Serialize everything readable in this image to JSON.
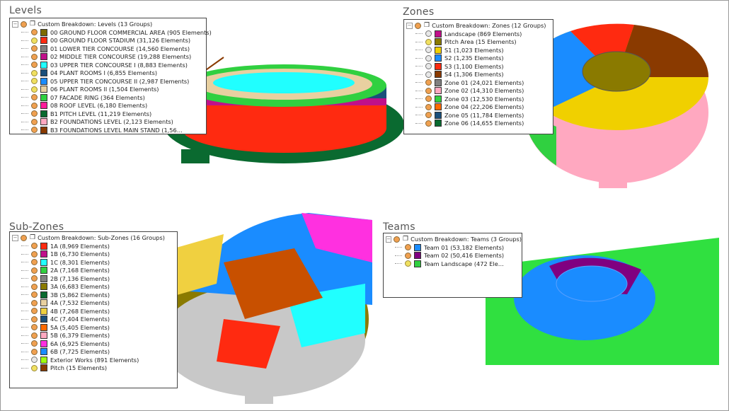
{
  "panels": [
    {
      "title": "Levels",
      "root": "Custom Breakdown: Levels (13 Groups)",
      "items": [
        {
          "label": "00 GROUND FLOOR COMMERCIAL AREA (905 Elements)",
          "color": "#7d6b00",
          "dot": "orange"
        },
        {
          "label": "00 GROUND FLOOR STADIUM (31,126 Elements)",
          "color": "#ff2a10",
          "dot": "yellow"
        },
        {
          "label": "01 LOWER TIER CONCOURSE (14,560 Elements)",
          "color": "#808080",
          "dot": "orange"
        },
        {
          "label": "02 MIDDLE TIER CONCOURSE (19,288 Elements)",
          "color": "#c0108a",
          "dot": "orange"
        },
        {
          "label": "03 UPPER TIER CONCOURSE I (8,883 Elements)",
          "color": "#20ffff",
          "dot": "orange"
        },
        {
          "label": "04 PLANT ROOMS I (6,855 Elements)",
          "color": "#1a4f7a",
          "dot": "yellow"
        },
        {
          "label": "05 UPPER TIER CONCOURSE II (2,987 Elements)",
          "color": "#1a8cff",
          "dot": "yellow"
        },
        {
          "label": "06 PLANT ROOMS II (1,504 Elements)",
          "color": "#e8d0a0",
          "dot": "yellow"
        },
        {
          "label": "07 FACADE RING (364 Elements)",
          "color": "#30d040",
          "dot": "orange"
        },
        {
          "label": "08 ROOF LEVEL (6,180 Elements)",
          "color": "#ff1a9a",
          "dot": "orange"
        },
        {
          "label": "B1 PITCH LEVEL (11,219 Elements)",
          "color": "#0a6a30",
          "dot": "orange"
        },
        {
          "label": "B2 FOUNDATIONS LEVEL (2,123 Elements)",
          "color": "#ffa8c0",
          "dot": "orange"
        },
        {
          "label": "B3 FOUNDATIONS LEVEL MAIN STAND (1,56…",
          "color": "#8a3a00",
          "dot": "orange"
        }
      ]
    },
    {
      "title": "Zones",
      "root": "Custom Breakdown: Zones (12 Groups)",
      "items": [
        {
          "label": "Landscape (869 Elements)",
          "color": "#c0108a",
          "dot": "gray"
        },
        {
          "label": "Pitch Area (15 Elements)",
          "color": "#8a7a00",
          "dot": "yellow"
        },
        {
          "label": "S1 (1,023 Elements)",
          "color": "#f0d000",
          "dot": "gray"
        },
        {
          "label": "S2 (1,235 Elements)",
          "color": "#1a8cff",
          "dot": "gray"
        },
        {
          "label": "S3 (1,100 Elements)",
          "color": "#ff2a10",
          "dot": "gray"
        },
        {
          "label": "S4 (1,306 Elements)",
          "color": "#8a3a00",
          "dot": "gray"
        },
        {
          "label": "Zone 01 (24,021 Elements)",
          "color": "#808080",
          "dot": "orange"
        },
        {
          "label": "Zone 02 (14,310 Elements)",
          "color": "#ffa8c0",
          "dot": "orange"
        },
        {
          "label": "Zone 03 (12,530 Elements)",
          "color": "#30d040",
          "dot": "orange"
        },
        {
          "label": "Zone 04 (22,206 Elements)",
          "color": "#ff6a00",
          "dot": "orange"
        },
        {
          "label": "Zone 05 (11,784 Elements)",
          "color": "#1a4f7a",
          "dot": "orange"
        },
        {
          "label": "Zone 06 (14,655 Elements)",
          "color": "#0a6a30",
          "dot": "orange"
        }
      ]
    },
    {
      "title": "Sub-Zones",
      "root": "Custom Breakdown: Sub-Zones (16 Groups)",
      "items": [
        {
          "label": "1A (8,969 Elements)",
          "color": "#ff2a10",
          "dot": "orange"
        },
        {
          "label": "1B (6,730 Elements)",
          "color": "#c0108a",
          "dot": "orange"
        },
        {
          "label": "1C (8,301 Elements)",
          "color": "#20ffff",
          "dot": "orange"
        },
        {
          "label": "2A (7,168 Elements)",
          "color": "#30d040",
          "dot": "orange"
        },
        {
          "label": "2B (7,136 Elements)",
          "color": "#808080",
          "dot": "orange"
        },
        {
          "label": "3A (6,683 Elements)",
          "color": "#8a7a00",
          "dot": "orange"
        },
        {
          "label": "3B (5,862 Elements)",
          "color": "#0a6a30",
          "dot": "orange"
        },
        {
          "label": "4A (7,532 Elements)",
          "color": "#e8d0a0",
          "dot": "orange"
        },
        {
          "label": "4B (7,268 Elements)",
          "color": "#f0d040",
          "dot": "orange"
        },
        {
          "label": "4C (7,404 Elements)",
          "color": "#1a4f7a",
          "dot": "orange"
        },
        {
          "label": "5A (5,405 Elements)",
          "color": "#ff6a00",
          "dot": "orange"
        },
        {
          "label": "5B (6,379 Elements)",
          "color": "#ffa8c0",
          "dot": "orange"
        },
        {
          "label": "6A (6,925 Elements)",
          "color": "#ff30e0",
          "dot": "orange"
        },
        {
          "label": "6B (7,725 Elements)",
          "color": "#1a8cff",
          "dot": "orange"
        },
        {
          "label": "Exterior Works (891 Elements)",
          "color": "#a0ff10",
          "dot": "gray"
        },
        {
          "label": "Pitch (15 Elements)",
          "color": "#8a3a00",
          "dot": "yellow"
        }
      ]
    },
    {
      "title": "Teams",
      "root": "Custom Breakdown: Teams (3 Groups)",
      "items": [
        {
          "label": "Team 01 (53,182 Elements)",
          "color": "#1a8cff",
          "dot": "orange"
        },
        {
          "label": "Team 02 (50,416 Elements)",
          "color": "#800080",
          "dot": "orange"
        },
        {
          "label": "Team Landscape (472 Ele…",
          "color": "#30d040",
          "dot": "yellow"
        }
      ]
    }
  ]
}
